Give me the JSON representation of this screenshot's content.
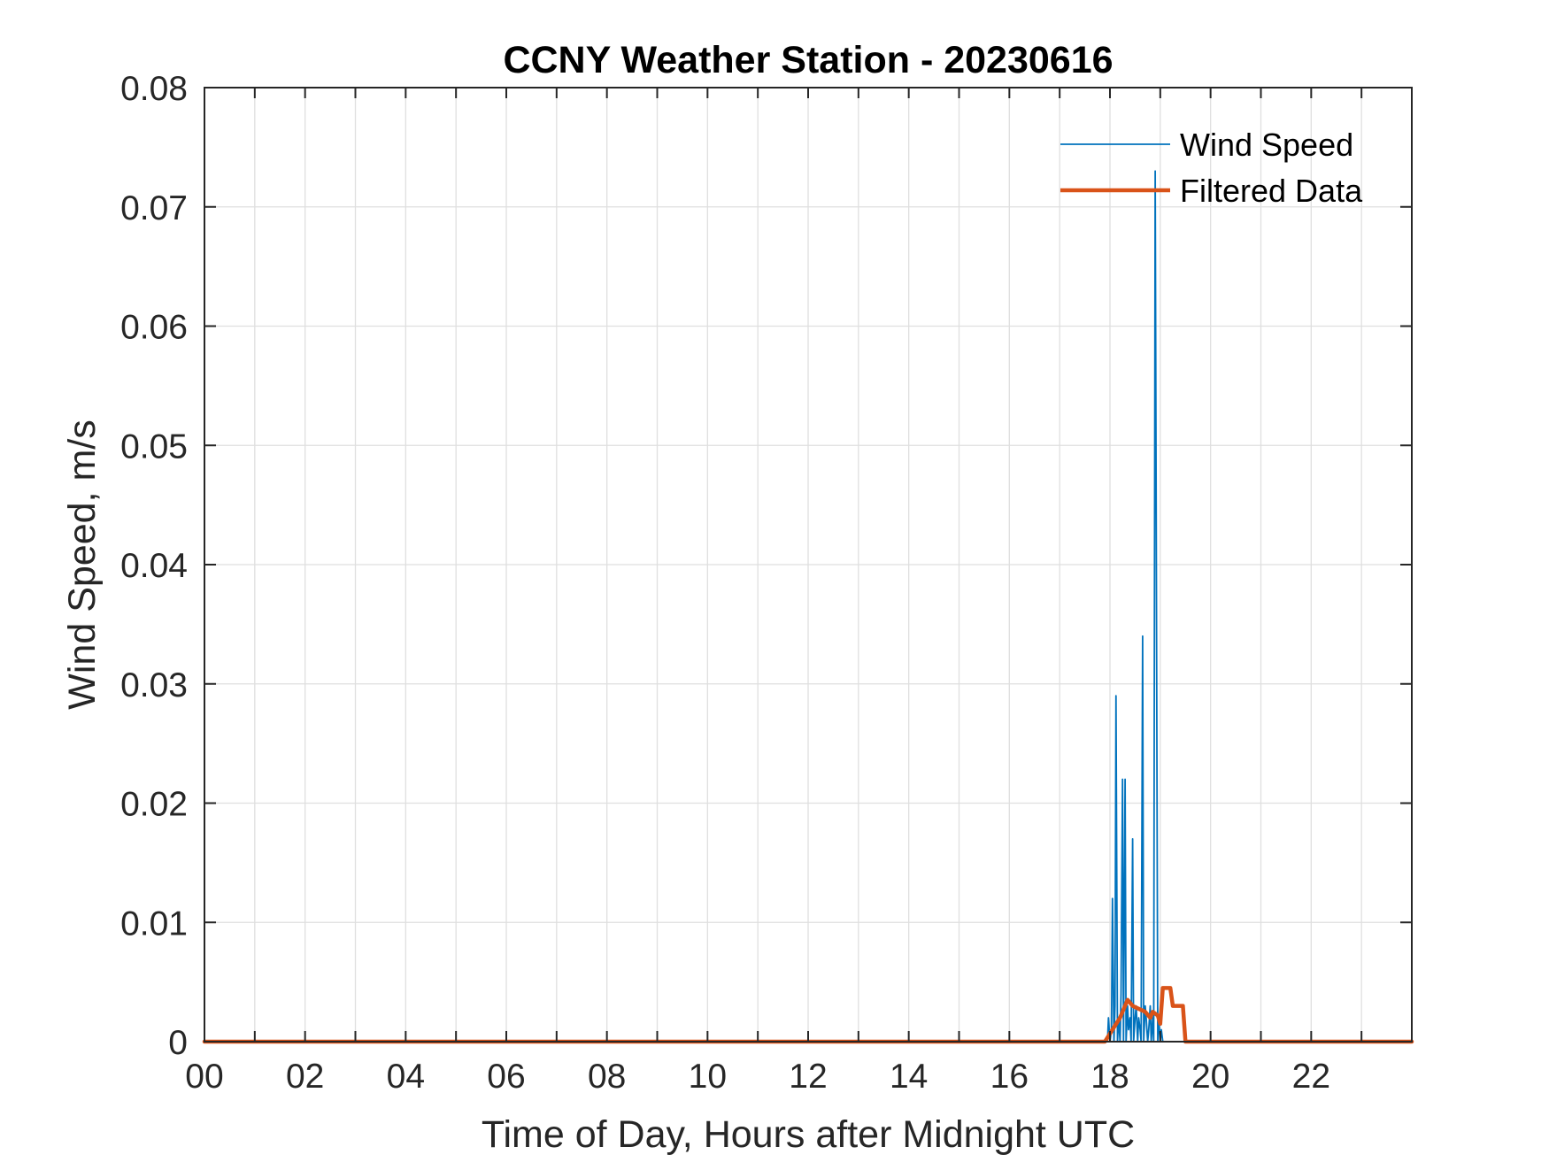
{
  "chart_data": {
    "type": "line",
    "title": "CCNY Weather Station - 20230616",
    "xlabel": "Time of Day, Hours after Midnight UTC",
    "ylabel": "Wind Speed, m/s",
    "xlim": [
      0,
      24
    ],
    "ylim": [
      0,
      0.08
    ],
    "x_ticks": [
      0,
      2,
      4,
      6,
      8,
      10,
      12,
      14,
      16,
      18,
      20,
      22
    ],
    "x_tick_labels": [
      "00",
      "02",
      "04",
      "06",
      "08",
      "10",
      "12",
      "14",
      "16",
      "18",
      "20",
      "22"
    ],
    "y_ticks": [
      0,
      0.01,
      0.02,
      0.03,
      0.04,
      0.05,
      0.06,
      0.07,
      0.08
    ],
    "y_tick_labels": [
      "0",
      "0.01",
      "0.02",
      "0.03",
      "0.04",
      "0.05",
      "0.06",
      "0.07",
      "0.08"
    ],
    "grid": true,
    "legend_position": "top-right",
    "series": [
      {
        "name": "Wind Speed",
        "color": "#0072BD",
        "x": [
          0,
          17.95,
          17.97,
          18.0,
          18.03,
          18.05,
          18.08,
          18.1,
          18.12,
          18.15,
          18.17,
          18.2,
          18.22,
          18.25,
          18.27,
          18.3,
          18.32,
          18.35,
          18.37,
          18.4,
          18.42,
          18.45,
          18.47,
          18.5,
          18.52,
          18.55,
          18.57,
          18.6,
          18.62,
          18.65,
          18.67,
          18.7,
          18.72,
          18.75,
          18.77,
          18.8,
          18.82,
          18.85,
          18.87,
          18.9,
          18.95,
          18.97,
          19.0,
          19.02,
          19.05,
          19.07,
          19.1,
          19.15,
          19.2,
          24
        ],
        "y": [
          0,
          0,
          0.002,
          0,
          0.001,
          0.012,
          0,
          0.003,
          0.029,
          0,
          0.002,
          0,
          0.004,
          0.022,
          0,
          0.022,
          0,
          0.003,
          0.001,
          0.002,
          0,
          0.017,
          0,
          0.002,
          0.003,
          0,
          0.002,
          0.001,
          0,
          0.034,
          0,
          0.003,
          0.002,
          0,
          0.001,
          0.003,
          0,
          0.002,
          0,
          0.073,
          0,
          0.002,
          0,
          0.001,
          0,
          0,
          0,
          0,
          0,
          0
        ]
      },
      {
        "name": "Filtered Data",
        "color": "#D95319",
        "x": [
          0,
          17.9,
          18.05,
          18.2,
          18.35,
          18.45,
          18.55,
          18.7,
          18.8,
          18.85,
          18.95,
          19.0,
          19.05,
          19.2,
          19.25,
          19.45,
          19.5,
          24
        ],
        "y": [
          0,
          0,
          0.001,
          0.002,
          0.0035,
          0.003,
          0.0028,
          0.0025,
          0.002,
          0.0025,
          0.0022,
          0.0015,
          0.0045,
          0.0045,
          0.003,
          0.003,
          0,
          0
        ]
      }
    ]
  }
}
